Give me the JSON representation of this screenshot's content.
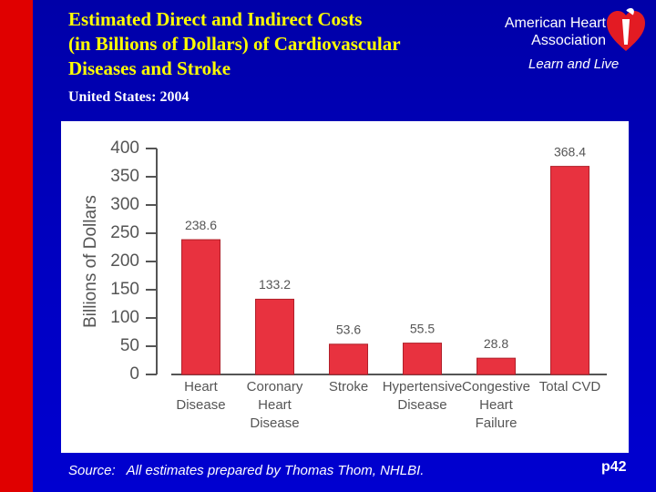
{
  "header": {
    "title": "Estimated Direct and Indirect Costs\n(in Billions of Dollars) of Cardiovascular\nDiseases and Stroke",
    "subtitle": "United States: 2004",
    "logo_name": "American Heart\nAssociation",
    "logo_tagline": "Learn and Live"
  },
  "chart_data": {
    "type": "bar",
    "y_label": "Billions of Dollars",
    "categories": [
      "Heart\nDisease",
      "Coronary\nHeart\nDisease",
      "Stroke",
      "Hypertensive\nDisease",
      "Congestive\nHeart\nFailure",
      "Total CVD"
    ],
    "values": [
      238.6,
      133.2,
      53.6,
      55.5,
      28.8,
      368.4
    ],
    "color": "#e8323f",
    "ylim": [
      0,
      400
    ],
    "yticks": [
      0,
      50,
      100,
      150,
      200,
      250,
      300,
      350,
      400
    ]
  },
  "footer": {
    "source": "Source:   All estimates prepared by Thomas Thom, NHLBI.",
    "page": "p42"
  }
}
